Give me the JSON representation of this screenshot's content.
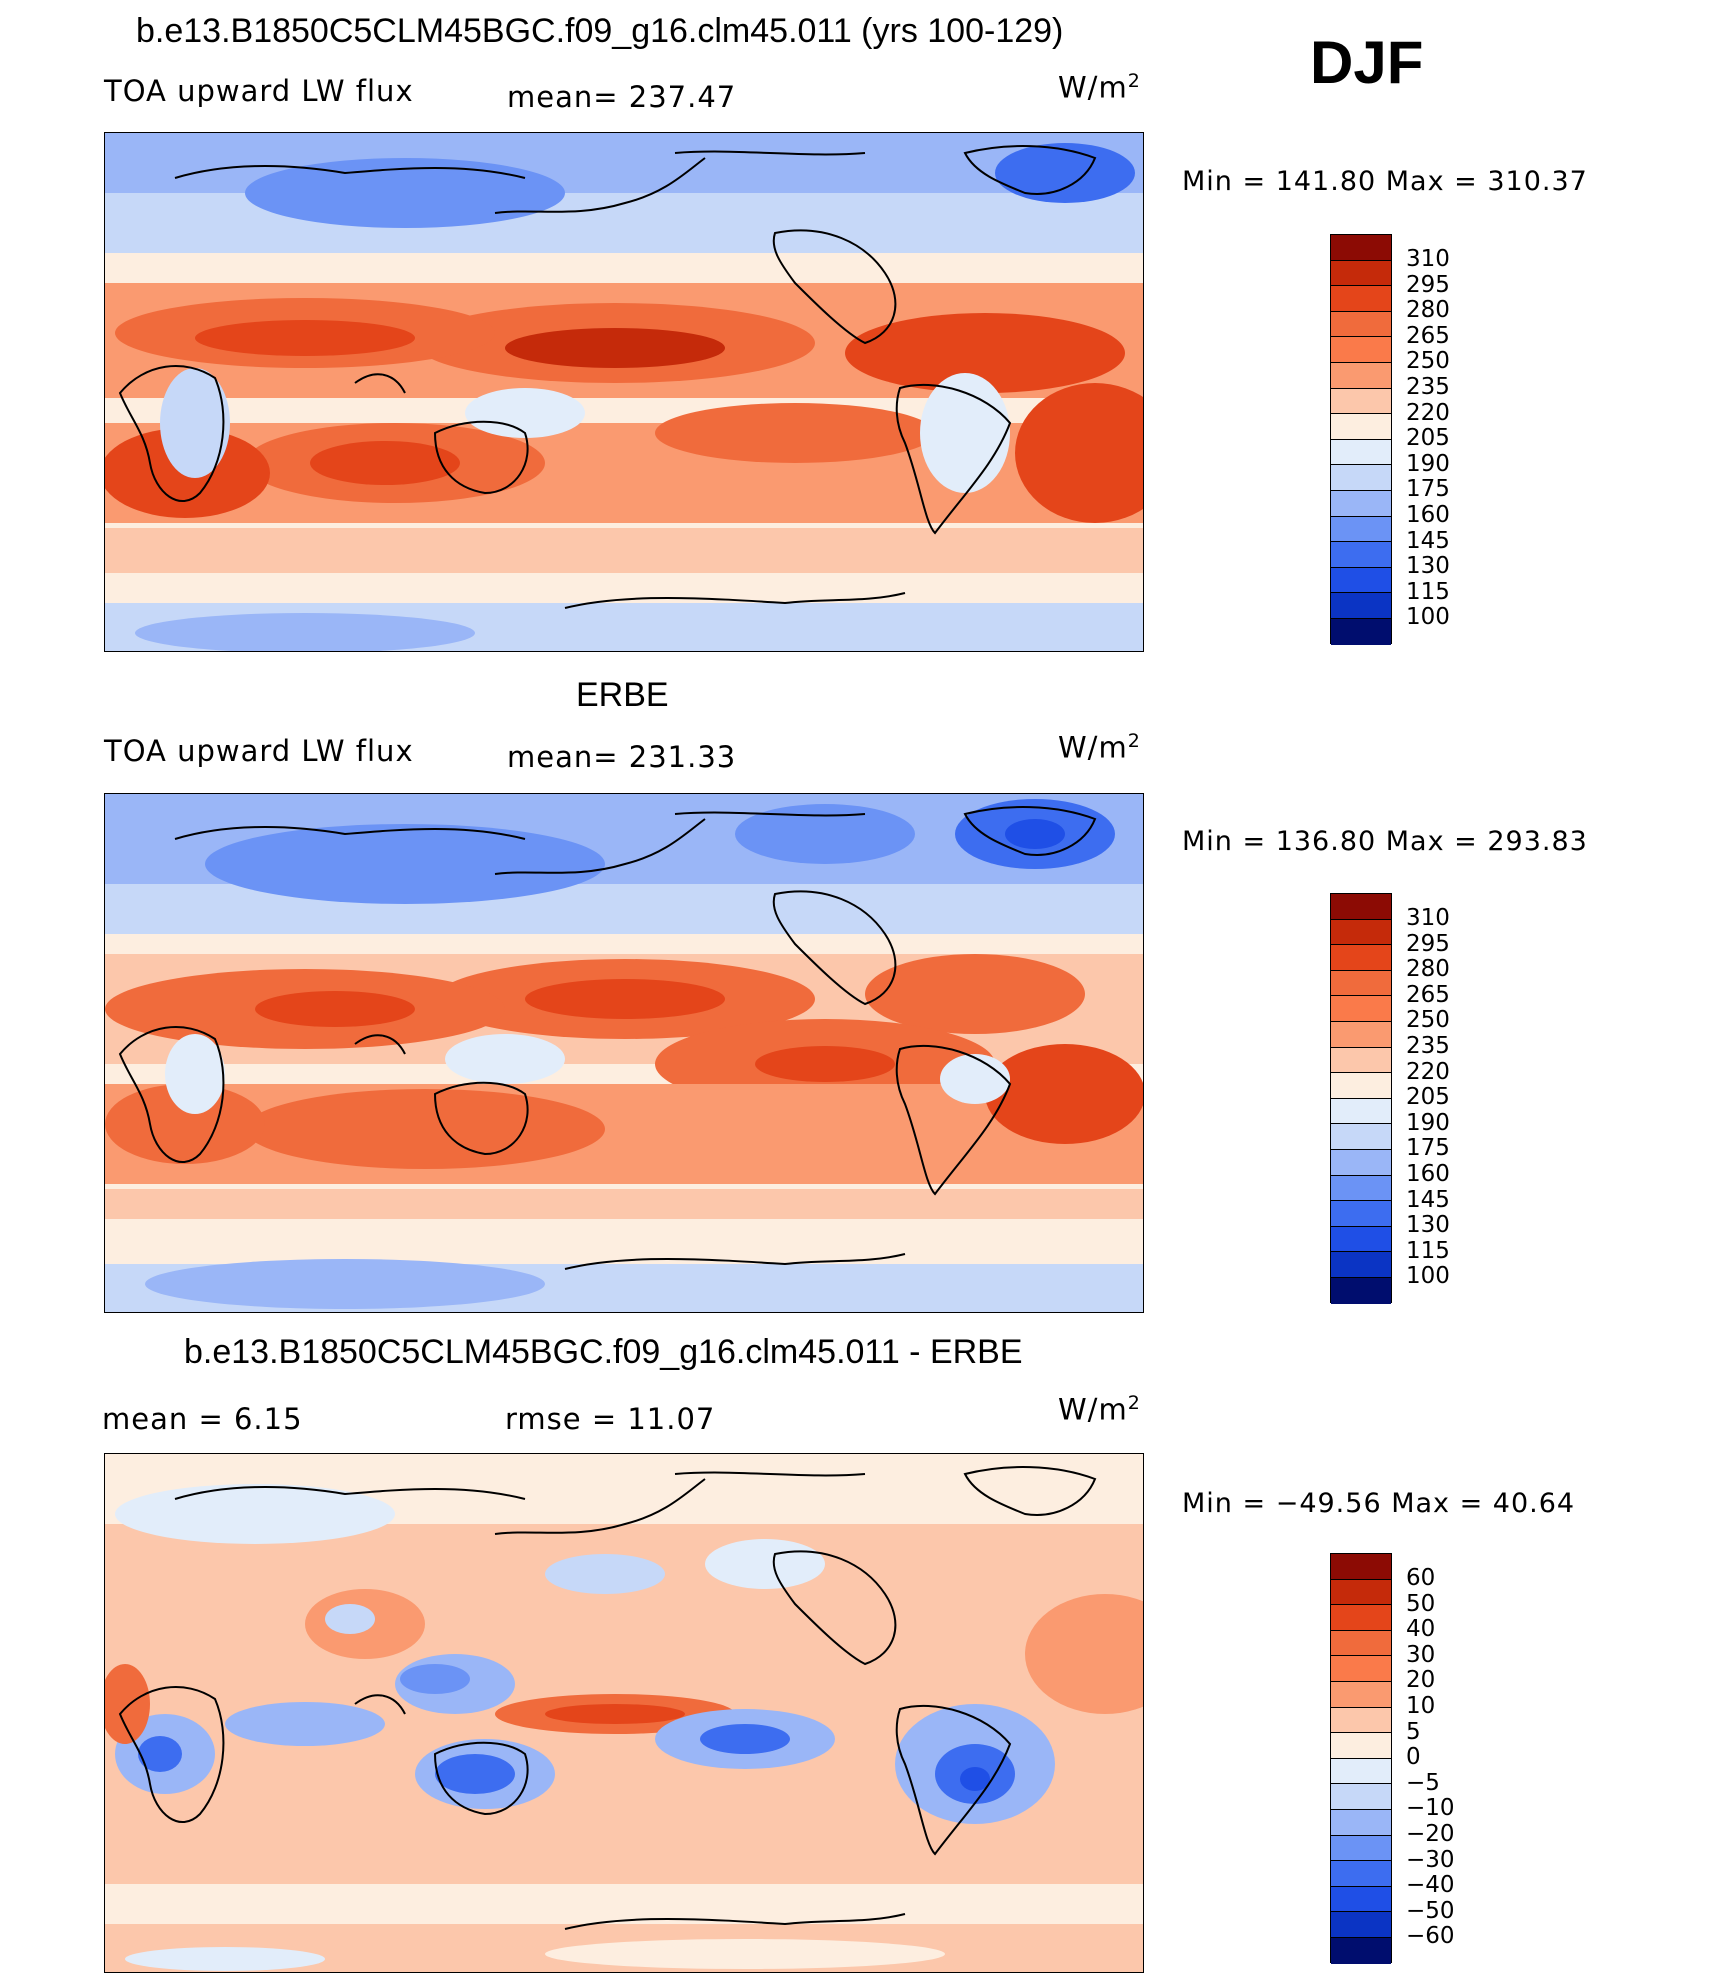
{
  "season": "DJF",
  "colors": {
    "levels16": [
      "#000d6e",
      "#00229e",
      "#0b34c4",
      "#1f4fe6",
      "#3d6df0",
      "#6b93f5",
      "#9ab6f7",
      "#c6d8f8",
      "#e2edfa",
      "#fdeee0",
      "#fcc7ab",
      "#fa9a70",
      "#f06b3c",
      "#e4451a",
      "#c52a0a",
      "#8c0b04"
    ],
    "coast": "#000000"
  },
  "panels": [
    {
      "title": "b.e13.B1850C5CLM45BGC.f09_g16.clm45.011 (yrs 100-129)",
      "left_label": "TOA upward LW flux",
      "center_label": "mean=  237.47",
      "unit": "W/m",
      "unit_sup": "2",
      "minmax": "Min  =  141.80  Max  =  310.37",
      "colorbar_labels": [
        "310",
        "295",
        "280",
        "265",
        "250",
        "235",
        "220",
        "205",
        "190",
        "175",
        "160",
        "145",
        "130",
        "115",
        "100"
      ]
    },
    {
      "title": "ERBE",
      "left_label": "TOA upward LW flux",
      "center_label": "mean=  231.33",
      "unit": "W/m",
      "unit_sup": "2",
      "minmax": "Min  =  136.80  Max  =  293.83",
      "colorbar_labels": [
        "310",
        "295",
        "280",
        "265",
        "250",
        "235",
        "220",
        "205",
        "190",
        "175",
        "160",
        "145",
        "130",
        "115",
        "100"
      ]
    },
    {
      "title": "b.e13.B1850C5CLM45BGC.f09_g16.clm45.011 - ERBE",
      "left_label": "mean  =      6.15",
      "center_label": "rmse  =     11.07",
      "unit": "W/m",
      "unit_sup": "2",
      "minmax": "Min  =  −49.56  Max  =     40.64",
      "colorbar_labels": [
        "60",
        "50",
        "40",
        "30",
        "20",
        "10",
        "5",
        "0",
        "−5",
        "−10",
        "−20",
        "−30",
        "−40",
        "−50",
        "−60"
      ]
    }
  ]
}
